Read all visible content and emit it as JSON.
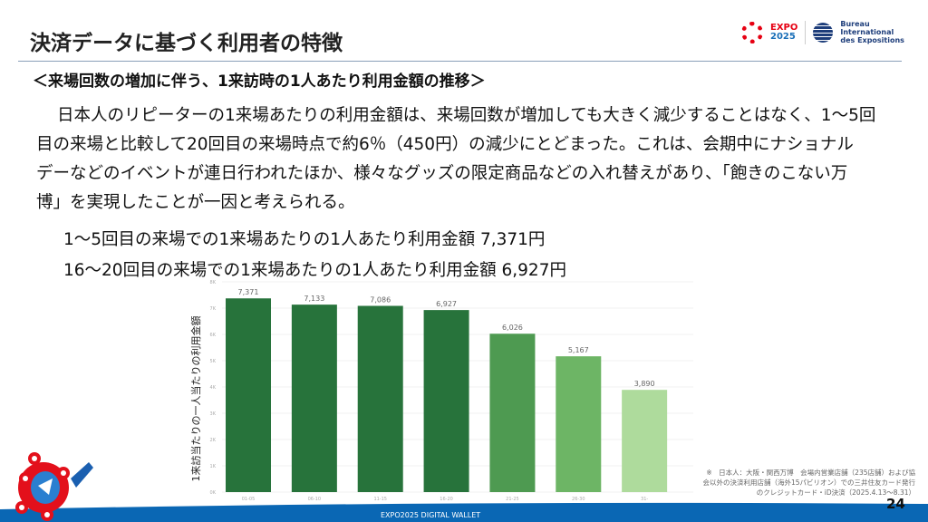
{
  "header": {
    "title": "決済データに基づく利用者の特徴",
    "logos": {
      "expo_small": "EXPO 2025",
      "bie": [
        "Bureau",
        "International",
        "des Expositions"
      ]
    }
  },
  "subtitle": "＜来場回数の増加に伴う、1来訪時の1人あたり利用金額の推移＞",
  "paragraph_lines": [
    "日本人のリピーターの1来場あたりの利用金額は、来場回数が増加しても大きく減少することはなく、1～5回",
    "目の来場と比較して20回目の来場時点で約6％（450円）の減少にとどまった。これは、会期中にナショナル",
    "デーなどのイベントが連日行われたほか、様々なグッズの限定商品などの入れ替えがあり、「飽きのこない万",
    "博」を実現したことが一因と考えられる。"
  ],
  "key_values": [
    "1～5回目の来場での1来場あたりの1人あたり利用金額 7,371円",
    "16～20回目の来場での1来場あたりの1人あたり利用金額 6,927円"
  ],
  "chart_data": {
    "type": "bar",
    "categories": [
      "01-05",
      "06-10",
      "11-15",
      "16-20",
      "21-25",
      "26-30",
      "31-"
    ],
    "values": [
      7371,
      7133,
      7086,
      6927,
      6026,
      5167,
      3890
    ],
    "data_labels": [
      "7,371",
      "7,133",
      "7,086",
      "6,927",
      "6,026",
      "5,167",
      "3,890"
    ],
    "bar_colors": [
      "#27733b",
      "#27733b",
      "#27733b",
      "#27733b",
      "#4e9a51",
      "#6db565",
      "#aedb9c"
    ],
    "ylabel": "1来訪当たりの一人当たりの利用金額",
    "xlabel": "",
    "ylim": [
      0,
      8000
    ],
    "yticks": [
      "0K",
      "1K",
      "2K",
      "3K",
      "4K",
      "5K",
      "6K",
      "7K",
      "8K"
    ],
    "grid": true
  },
  "footnote": [
    "※　日本人：大阪・関西万博　会場内営業店舗（235店舗）および協",
    "会以外の決済利用店舗（海外15パビリオン）での三井住友カード発行",
    "のクレジットカード・iD決済（2025.4.13～8.31）"
  ],
  "page_number": "24",
  "footer": {
    "text": "EXPO2025 DIGITAL WALLET",
    "color": "#0a67b4"
  }
}
